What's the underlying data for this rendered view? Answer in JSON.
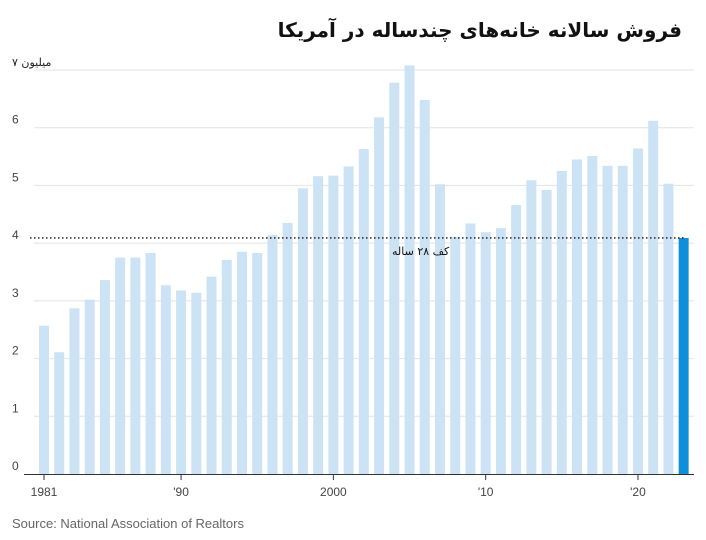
{
  "chart_data": {
    "type": "bar",
    "title": "فروش سالانه خانه‌های چندساله در آمریکا",
    "unit_label": "۷ میلیون",
    "source": "Source: National Association of Realtors",
    "x": [
      1981,
      1982,
      1983,
      1984,
      1985,
      1986,
      1987,
      1988,
      1989,
      1990,
      1991,
      1992,
      1993,
      1994,
      1995,
      1996,
      1997,
      1998,
      1999,
      2000,
      2001,
      2002,
      2003,
      2004,
      2005,
      2006,
      2007,
      2008,
      2009,
      2010,
      2011,
      2012,
      2013,
      2014,
      2015,
      2016,
      2017,
      2018,
      2019,
      2020,
      2021,
      2022,
      2023
    ],
    "values": [
      2.57,
      2.11,
      2.87,
      3.02,
      3.36,
      3.75,
      3.75,
      3.83,
      3.27,
      3.18,
      3.14,
      3.42,
      3.71,
      3.85,
      3.83,
      4.14,
      4.35,
      4.95,
      5.16,
      5.17,
      5.33,
      5.63,
      6.18,
      6.78,
      7.08,
      6.48,
      5.02,
      4.11,
      4.34,
      4.19,
      4.26,
      4.66,
      5.09,
      4.92,
      5.25,
      5.45,
      5.51,
      5.34,
      5.34,
      5.64,
      6.12,
      5.03,
      4.09
    ],
    "highlight_index": 42,
    "x_tick_labels": [
      {
        "x": 1981,
        "label": "1981"
      },
      {
        "x": 1990,
        "label": "'90"
      },
      {
        "x": 2000,
        "label": "2000"
      },
      {
        "x": 2010,
        "label": "'10"
      },
      {
        "x": 2020,
        "label": "'20"
      }
    ],
    "y_ticks": [
      "0",
      "1",
      "2",
      "3",
      "4",
      "5",
      "6"
    ],
    "ylim": [
      0,
      7
    ],
    "reference_line": {
      "value": 4.09,
      "label": "کف ۲۸ ساله"
    },
    "colors": {
      "bar": "#cce3f6",
      "highlight": "#0d8fd9",
      "grid": "#e3e3e3",
      "axis": "#333333",
      "ref": "#111111"
    }
  }
}
